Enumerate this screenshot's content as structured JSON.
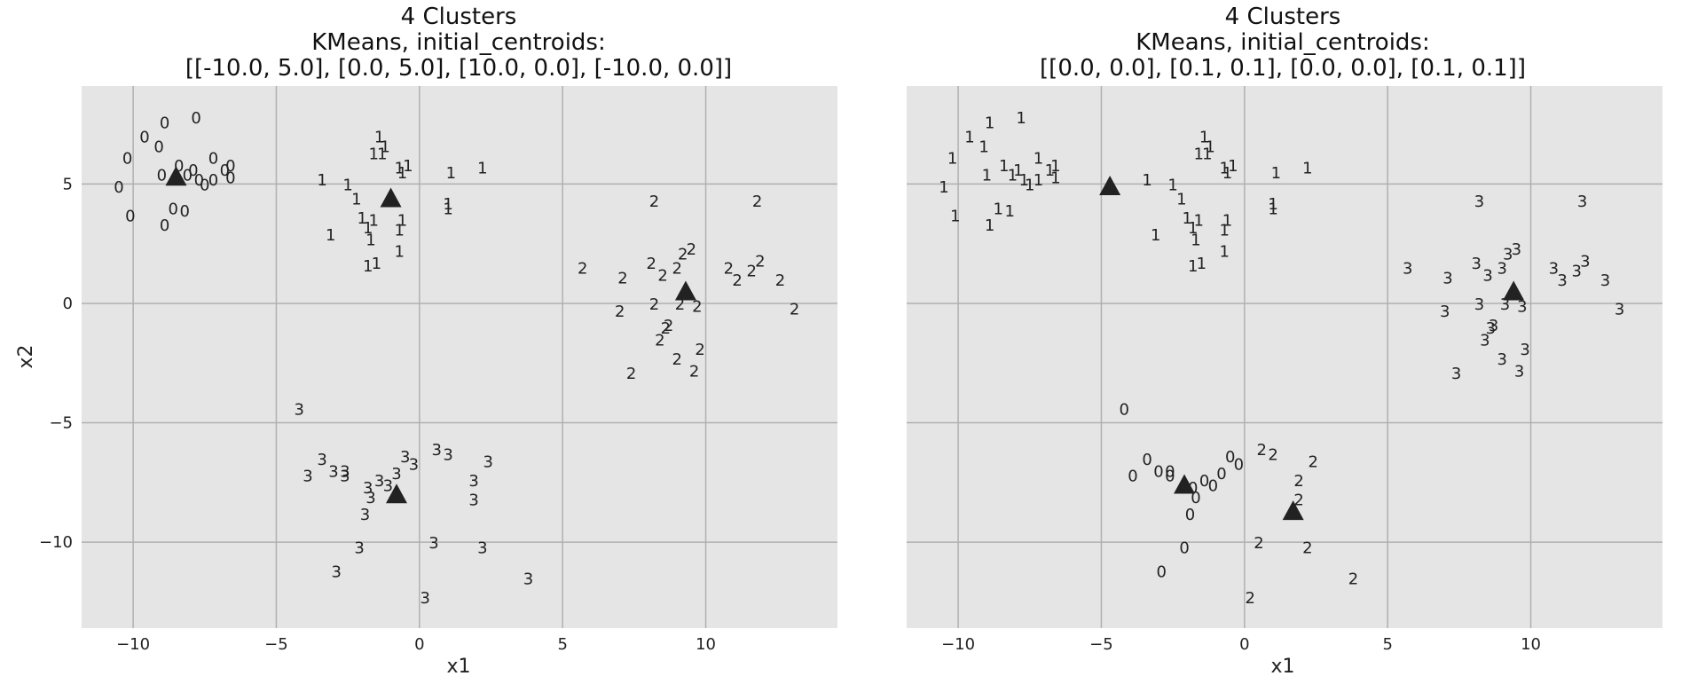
{
  "chart_data": [
    {
      "type": "scatter",
      "title": [
        "4 Clusters",
        "KMeans, initial_centroids:",
        "[[-10.0, 5.0], [0.0, 5.0], [10.0, 0.0], [-10.0, 0.0]]"
      ],
      "xlabel": "x1",
      "ylabel": "x2",
      "xlim": [
        -11.8,
        14.6
      ],
      "ylim": [
        -13.6,
        9.1
      ],
      "xticks": [
        -10,
        -5,
        0,
        5,
        10
      ],
      "yticks": [
        5,
        0,
        -5,
        -10
      ],
      "grid": true,
      "marker": "cluster-label",
      "points": [
        {
          "x": -10.5,
          "y": 4.9,
          "label": "0"
        },
        {
          "x": -10.2,
          "y": 6.1,
          "label": "0"
        },
        {
          "x": -10.1,
          "y": 3.7,
          "label": "0"
        },
        {
          "x": -9.6,
          "y": 7.0,
          "label": "0"
        },
        {
          "x": -9.1,
          "y": 6.6,
          "label": "0"
        },
        {
          "x": -8.9,
          "y": 7.6,
          "label": "0"
        },
        {
          "x": -9.0,
          "y": 5.4,
          "label": "0"
        },
        {
          "x": -8.6,
          "y": 4.0,
          "label": "0"
        },
        {
          "x": -8.4,
          "y": 5.8,
          "label": "0"
        },
        {
          "x": -8.1,
          "y": 5.4,
          "label": "0"
        },
        {
          "x": -8.2,
          "y": 3.9,
          "label": "0"
        },
        {
          "x": -7.8,
          "y": 7.8,
          "label": "0"
        },
        {
          "x": -7.9,
          "y": 5.6,
          "label": "0"
        },
        {
          "x": -7.5,
          "y": 5.0,
          "label": "0"
        },
        {
          "x": -7.7,
          "y": 5.2,
          "label": "0"
        },
        {
          "x": -7.2,
          "y": 6.1,
          "label": "0"
        },
        {
          "x": -6.8,
          "y": 5.6,
          "label": "0"
        },
        {
          "x": -6.6,
          "y": 5.3,
          "label": "0"
        },
        {
          "x": -8.9,
          "y": 3.3,
          "label": "0"
        },
        {
          "x": -6.6,
          "y": 5.8,
          "label": "0"
        },
        {
          "x": -7.2,
          "y": 5.2,
          "label": "0"
        },
        {
          "x": -3.4,
          "y": 5.2,
          "label": "1"
        },
        {
          "x": -2.5,
          "y": 5.0,
          "label": "1"
        },
        {
          "x": -2.2,
          "y": 4.4,
          "label": "1"
        },
        {
          "x": -2.0,
          "y": 3.6,
          "label": "1"
        },
        {
          "x": -3.1,
          "y": 2.9,
          "label": "1"
        },
        {
          "x": -1.8,
          "y": 3.2,
          "label": "1"
        },
        {
          "x": -1.7,
          "y": 2.7,
          "label": "1"
        },
        {
          "x": -1.8,
          "y": 1.6,
          "label": "1"
        },
        {
          "x": -1.5,
          "y": 1.7,
          "label": "1"
        },
        {
          "x": -1.6,
          "y": 3.5,
          "label": "1"
        },
        {
          "x": -1.6,
          "y": 6.3,
          "label": "1"
        },
        {
          "x": -1.4,
          "y": 7.0,
          "label": "1"
        },
        {
          "x": -1.2,
          "y": 6.6,
          "label": "1"
        },
        {
          "x": -1.3,
          "y": 6.3,
          "label": "1"
        },
        {
          "x": -0.7,
          "y": 5.7,
          "label": "1"
        },
        {
          "x": -0.4,
          "y": 5.8,
          "label": "1"
        },
        {
          "x": -0.6,
          "y": 5.5,
          "label": "1"
        },
        {
          "x": -0.6,
          "y": 3.5,
          "label": "1"
        },
        {
          "x": -0.7,
          "y": 3.1,
          "label": "1"
        },
        {
          "x": -0.7,
          "y": 2.2,
          "label": "1"
        },
        {
          "x": 1.1,
          "y": 5.5,
          "label": "1"
        },
        {
          "x": 1.0,
          "y": 4.2,
          "label": "1"
        },
        {
          "x": 1.0,
          "y": 4.0,
          "label": "1"
        },
        {
          "x": 2.2,
          "y": 5.7,
          "label": "1"
        },
        {
          "x": 8.2,
          "y": 4.3,
          "label": "2"
        },
        {
          "x": 11.8,
          "y": 4.3,
          "label": "2"
        },
        {
          "x": 5.7,
          "y": 1.5,
          "label": "2"
        },
        {
          "x": 7.1,
          "y": 1.1,
          "label": "2"
        },
        {
          "x": 8.1,
          "y": 1.7,
          "label": "2"
        },
        {
          "x": 8.5,
          "y": 1.2,
          "label": "2"
        },
        {
          "x": 9.0,
          "y": 1.5,
          "label": "2"
        },
        {
          "x": 9.2,
          "y": 2.1,
          "label": "2"
        },
        {
          "x": 9.5,
          "y": 2.3,
          "label": "2"
        },
        {
          "x": 10.8,
          "y": 1.5,
          "label": "2"
        },
        {
          "x": 11.1,
          "y": 1.0,
          "label": "2"
        },
        {
          "x": 11.6,
          "y": 1.4,
          "label": "2"
        },
        {
          "x": 11.9,
          "y": 1.8,
          "label": "2"
        },
        {
          "x": 12.6,
          "y": 1.0,
          "label": "2"
        },
        {
          "x": 7.0,
          "y": -0.3,
          "label": "2"
        },
        {
          "x": 8.2,
          "y": 0.0,
          "label": "2"
        },
        {
          "x": 9.1,
          "y": 0.0,
          "label": "2"
        },
        {
          "x": 9.7,
          "y": -0.1,
          "label": "2"
        },
        {
          "x": 8.6,
          "y": -1.0,
          "label": "2"
        },
        {
          "x": 8.7,
          "y": -0.9,
          "label": "2"
        },
        {
          "x": 8.4,
          "y": -1.5,
          "label": "2"
        },
        {
          "x": 9.8,
          "y": -1.9,
          "label": "2"
        },
        {
          "x": 9.0,
          "y": -2.3,
          "label": "2"
        },
        {
          "x": 9.6,
          "y": -2.8,
          "label": "2"
        },
        {
          "x": 7.4,
          "y": -2.9,
          "label": "2"
        },
        {
          "x": 13.1,
          "y": -0.2,
          "label": "2"
        },
        {
          "x": -4.2,
          "y": -4.4,
          "label": "3"
        },
        {
          "x": -3.4,
          "y": -6.5,
          "label": "3"
        },
        {
          "x": -3.9,
          "y": -7.2,
          "label": "3"
        },
        {
          "x": -3.0,
          "y": -7.0,
          "label": "3"
        },
        {
          "x": -2.6,
          "y": -7.0,
          "label": "3"
        },
        {
          "x": -2.6,
          "y": -7.2,
          "label": "3"
        },
        {
          "x": -1.8,
          "y": -7.7,
          "label": "3"
        },
        {
          "x": -1.7,
          "y": -8.1,
          "label": "3"
        },
        {
          "x": -1.9,
          "y": -8.8,
          "label": "3"
        },
        {
          "x": -1.4,
          "y": -7.4,
          "label": "3"
        },
        {
          "x": -1.1,
          "y": -7.6,
          "label": "3"
        },
        {
          "x": -0.8,
          "y": -7.1,
          "label": "3"
        },
        {
          "x": -0.5,
          "y": -6.4,
          "label": "3"
        },
        {
          "x": -0.2,
          "y": -6.7,
          "label": "3"
        },
        {
          "x": 0.6,
          "y": -6.1,
          "label": "3"
        },
        {
          "x": 1.0,
          "y": -6.3,
          "label": "3"
        },
        {
          "x": 2.4,
          "y": -6.6,
          "label": "3"
        },
        {
          "x": 1.9,
          "y": -7.4,
          "label": "3"
        },
        {
          "x": 1.9,
          "y": -8.2,
          "label": "3"
        },
        {
          "x": -2.1,
          "y": -10.2,
          "label": "3"
        },
        {
          "x": -2.9,
          "y": -11.2,
          "label": "3"
        },
        {
          "x": 0.5,
          "y": -10.0,
          "label": "3"
        },
        {
          "x": 2.2,
          "y": -10.2,
          "label": "3"
        },
        {
          "x": 0.2,
          "y": -12.3,
          "label": "3"
        },
        {
          "x": 3.8,
          "y": -11.5,
          "label": "3"
        }
      ],
      "centroids": [
        {
          "x": -8.5,
          "y": 5.3
        },
        {
          "x": -1.0,
          "y": 4.4
        },
        {
          "x": 9.3,
          "y": 0.5
        },
        {
          "x": -0.8,
          "y": -8.0
        }
      ]
    },
    {
      "type": "scatter",
      "title": [
        "4 Clusters",
        "KMeans, initial_centroids:",
        "[[0.0, 0.0], [0.1, 0.1], [0.0, 0.0], [0.1, 0.1]]"
      ],
      "xlabel": "x1",
      "ylabel": "",
      "xlim": [
        -11.8,
        14.6
      ],
      "ylim": [
        -13.6,
        9.1
      ],
      "xticks": [
        -10,
        -5,
        0,
        5,
        10
      ],
      "yticks": [
        5,
        0,
        -5,
        -10
      ],
      "grid": true,
      "marker": "cluster-label",
      "points": [
        {
          "x": -10.5,
          "y": 4.9,
          "label": "1"
        },
        {
          "x": -10.2,
          "y": 6.1,
          "label": "1"
        },
        {
          "x": -10.1,
          "y": 3.7,
          "label": "1"
        },
        {
          "x": -9.6,
          "y": 7.0,
          "label": "1"
        },
        {
          "x": -9.1,
          "y": 6.6,
          "label": "1"
        },
        {
          "x": -8.9,
          "y": 7.6,
          "label": "1"
        },
        {
          "x": -9.0,
          "y": 5.4,
          "label": "1"
        },
        {
          "x": -8.6,
          "y": 4.0,
          "label": "1"
        },
        {
          "x": -8.4,
          "y": 5.8,
          "label": "1"
        },
        {
          "x": -8.1,
          "y": 5.4,
          "label": "1"
        },
        {
          "x": -8.2,
          "y": 3.9,
          "label": "1"
        },
        {
          "x": -7.8,
          "y": 7.8,
          "label": "1"
        },
        {
          "x": -7.9,
          "y": 5.6,
          "label": "1"
        },
        {
          "x": -7.5,
          "y": 5.0,
          "label": "1"
        },
        {
          "x": -7.7,
          "y": 5.2,
          "label": "1"
        },
        {
          "x": -7.2,
          "y": 6.1,
          "label": "1"
        },
        {
          "x": -6.8,
          "y": 5.6,
          "label": "1"
        },
        {
          "x": -6.6,
          "y": 5.3,
          "label": "1"
        },
        {
          "x": -8.9,
          "y": 3.3,
          "label": "1"
        },
        {
          "x": -6.6,
          "y": 5.8,
          "label": "1"
        },
        {
          "x": -7.2,
          "y": 5.2,
          "label": "1"
        },
        {
          "x": -3.4,
          "y": 5.2,
          "label": "1"
        },
        {
          "x": -2.5,
          "y": 5.0,
          "label": "1"
        },
        {
          "x": -2.2,
          "y": 4.4,
          "label": "1"
        },
        {
          "x": -2.0,
          "y": 3.6,
          "label": "1"
        },
        {
          "x": -3.1,
          "y": 2.9,
          "label": "1"
        },
        {
          "x": -1.8,
          "y": 3.2,
          "label": "1"
        },
        {
          "x": -1.7,
          "y": 2.7,
          "label": "1"
        },
        {
          "x": -1.8,
          "y": 1.6,
          "label": "1"
        },
        {
          "x": -1.5,
          "y": 1.7,
          "label": "1"
        },
        {
          "x": -1.6,
          "y": 3.5,
          "label": "1"
        },
        {
          "x": -1.6,
          "y": 6.3,
          "label": "1"
        },
        {
          "x": -1.4,
          "y": 7.0,
          "label": "1"
        },
        {
          "x": -1.2,
          "y": 6.6,
          "label": "1"
        },
        {
          "x": -1.3,
          "y": 6.3,
          "label": "1"
        },
        {
          "x": -0.7,
          "y": 5.7,
          "label": "1"
        },
        {
          "x": -0.4,
          "y": 5.8,
          "label": "1"
        },
        {
          "x": -0.6,
          "y": 5.5,
          "label": "1"
        },
        {
          "x": -0.6,
          "y": 3.5,
          "label": "1"
        },
        {
          "x": -0.7,
          "y": 3.1,
          "label": "1"
        },
        {
          "x": -0.7,
          "y": 2.2,
          "label": "1"
        },
        {
          "x": 1.1,
          "y": 5.5,
          "label": "1"
        },
        {
          "x": 1.0,
          "y": 4.2,
          "label": "1"
        },
        {
          "x": 1.0,
          "y": 4.0,
          "label": "1"
        },
        {
          "x": 2.2,
          "y": 5.7,
          "label": "1"
        },
        {
          "x": 8.2,
          "y": 4.3,
          "label": "3"
        },
        {
          "x": 11.8,
          "y": 4.3,
          "label": "3"
        },
        {
          "x": 5.7,
          "y": 1.5,
          "label": "3"
        },
        {
          "x": 7.1,
          "y": 1.1,
          "label": "3"
        },
        {
          "x": 8.1,
          "y": 1.7,
          "label": "3"
        },
        {
          "x": 8.5,
          "y": 1.2,
          "label": "3"
        },
        {
          "x": 9.0,
          "y": 1.5,
          "label": "3"
        },
        {
          "x": 9.2,
          "y": 2.1,
          "label": "3"
        },
        {
          "x": 9.5,
          "y": 2.3,
          "label": "3"
        },
        {
          "x": 10.8,
          "y": 1.5,
          "label": "3"
        },
        {
          "x": 11.1,
          "y": 1.0,
          "label": "3"
        },
        {
          "x": 11.6,
          "y": 1.4,
          "label": "3"
        },
        {
          "x": 11.9,
          "y": 1.8,
          "label": "3"
        },
        {
          "x": 12.6,
          "y": 1.0,
          "label": "3"
        },
        {
          "x": 7.0,
          "y": -0.3,
          "label": "3"
        },
        {
          "x": 8.2,
          "y": 0.0,
          "label": "3"
        },
        {
          "x": 9.1,
          "y": 0.0,
          "label": "3"
        },
        {
          "x": 9.7,
          "y": -0.1,
          "label": "3"
        },
        {
          "x": 8.6,
          "y": -1.0,
          "label": "3"
        },
        {
          "x": 8.7,
          "y": -0.9,
          "label": "3"
        },
        {
          "x": 8.4,
          "y": -1.5,
          "label": "3"
        },
        {
          "x": 9.8,
          "y": -1.9,
          "label": "3"
        },
        {
          "x": 9.0,
          "y": -2.3,
          "label": "3"
        },
        {
          "x": 9.6,
          "y": -2.8,
          "label": "3"
        },
        {
          "x": 7.4,
          "y": -2.9,
          "label": "3"
        },
        {
          "x": 13.1,
          "y": -0.2,
          "label": "3"
        },
        {
          "x": -4.2,
          "y": -4.4,
          "label": "0"
        },
        {
          "x": -3.4,
          "y": -6.5,
          "label": "0"
        },
        {
          "x": -3.9,
          "y": -7.2,
          "label": "0"
        },
        {
          "x": -3.0,
          "y": -7.0,
          "label": "0"
        },
        {
          "x": -2.6,
          "y": -7.0,
          "label": "0"
        },
        {
          "x": -2.6,
          "y": -7.2,
          "label": "0"
        },
        {
          "x": -1.8,
          "y": -7.7,
          "label": "0"
        },
        {
          "x": -1.7,
          "y": -8.1,
          "label": "0"
        },
        {
          "x": -1.9,
          "y": -8.8,
          "label": "0"
        },
        {
          "x": -1.4,
          "y": -7.4,
          "label": "0"
        },
        {
          "x": -1.1,
          "y": -7.6,
          "label": "0"
        },
        {
          "x": -0.8,
          "y": -7.1,
          "label": "0"
        },
        {
          "x": -0.5,
          "y": -6.4,
          "label": "0"
        },
        {
          "x": -0.2,
          "y": -6.7,
          "label": "0"
        },
        {
          "x": 0.6,
          "y": -6.1,
          "label": "2"
        },
        {
          "x": 1.0,
          "y": -6.3,
          "label": "2"
        },
        {
          "x": 2.4,
          "y": -6.6,
          "label": "2"
        },
        {
          "x": 1.9,
          "y": -7.4,
          "label": "2"
        },
        {
          "x": 1.9,
          "y": -8.2,
          "label": "2"
        },
        {
          "x": -2.1,
          "y": -10.2,
          "label": "0"
        },
        {
          "x": -2.9,
          "y": -11.2,
          "label": "0"
        },
        {
          "x": 0.5,
          "y": -10.0,
          "label": "2"
        },
        {
          "x": 2.2,
          "y": -10.2,
          "label": "2"
        },
        {
          "x": 0.2,
          "y": -12.3,
          "label": "2"
        },
        {
          "x": 3.8,
          "y": -11.5,
          "label": "2"
        }
      ],
      "centroids": [
        {
          "x": -4.7,
          "y": 4.9
        },
        {
          "x": -2.1,
          "y": -7.6
        },
        {
          "x": 9.4,
          "y": 0.5
        },
        {
          "x": 1.7,
          "y": -8.7
        }
      ]
    }
  ],
  "colors": {
    "plot_background": "#e5e5e5",
    "grid": "#b0b0b0",
    "text": "#222222",
    "centroid": "#222222"
  }
}
